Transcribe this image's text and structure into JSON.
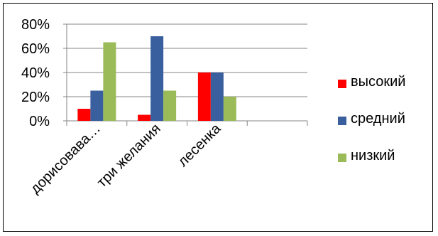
{
  "chart_data": {
    "type": "bar",
    "categories": [
      "дорисовава…",
      "три желания",
      "лесенка",
      ""
    ],
    "series": [
      {
        "name": "высокий",
        "color": "#ff0000",
        "values": [
          0.1,
          0.05,
          0.4,
          null
        ]
      },
      {
        "name": "средний",
        "color": "#3a5f9e",
        "values": [
          0.25,
          0.7,
          0.4,
          null
        ]
      },
      {
        "name": "низкий",
        "color": "#9bbb59",
        "values": [
          0.65,
          0.25,
          0.2,
          null
        ]
      }
    ],
    "y_ticks": [
      "0%",
      "20%",
      "40%",
      "60%",
      "80%"
    ],
    "ylim": [
      0,
      0.8
    ],
    "grid": true,
    "legend_position": "right",
    "title": "",
    "xlabel": "",
    "ylabel": ""
  }
}
